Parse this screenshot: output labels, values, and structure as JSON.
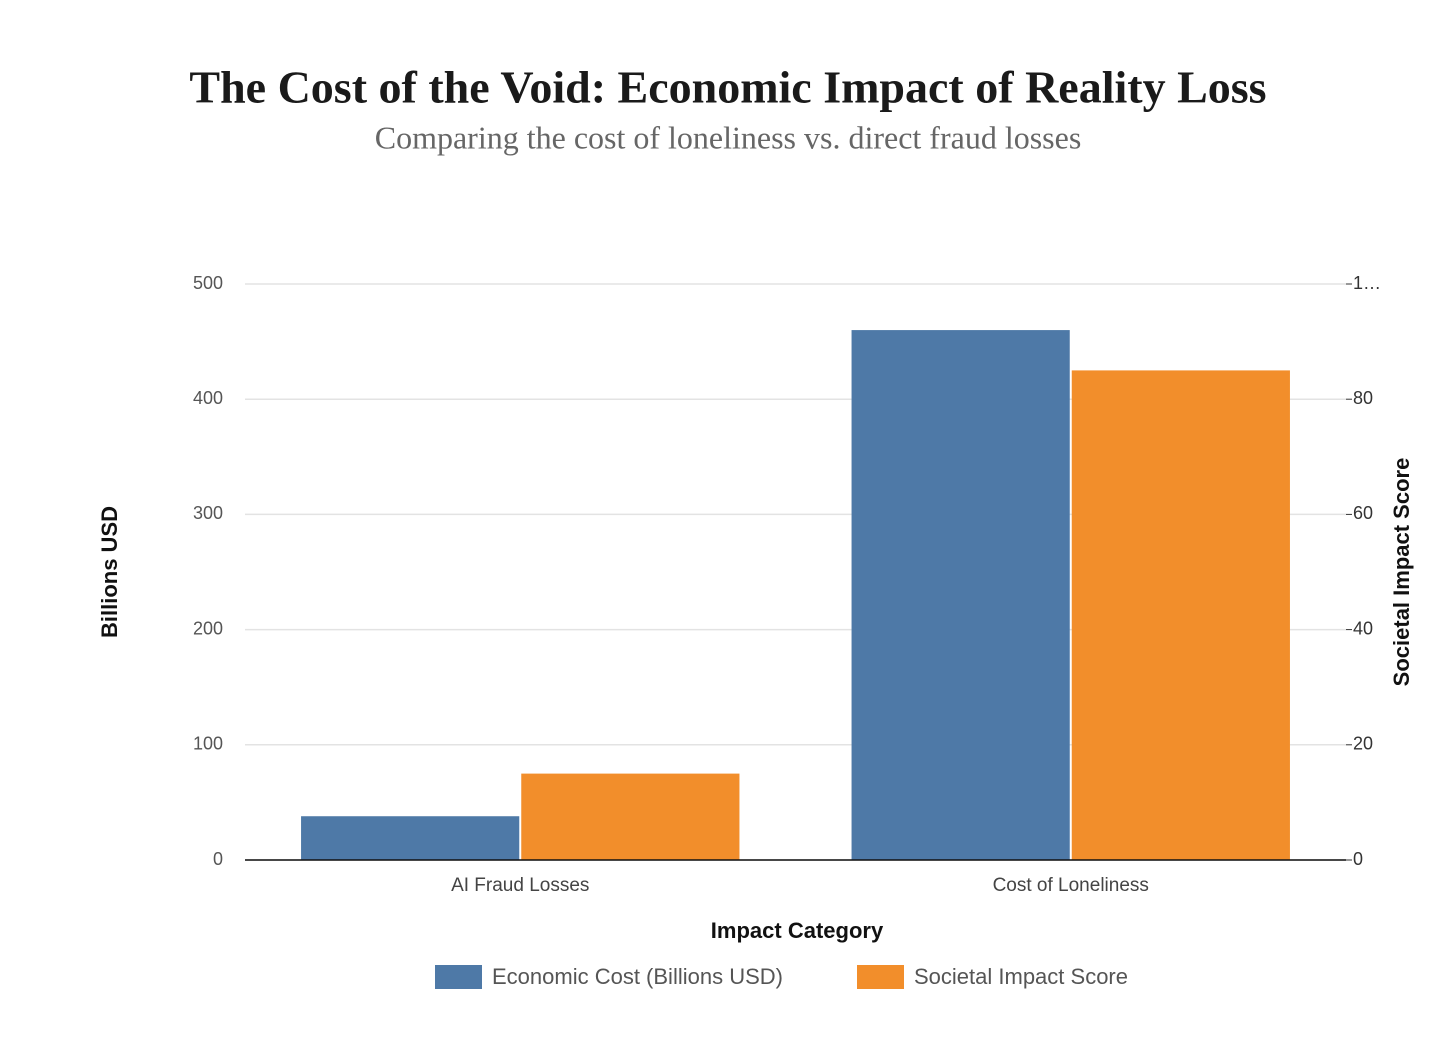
{
  "chart_data": {
    "type": "bar",
    "title": "The Cost of the Void: Economic Impact of Reality Loss",
    "subtitle": "Comparing the cost of loneliness vs. direct fraud losses",
    "x_label": "Impact Category",
    "y_label": "Billions USD",
    "y2_label": "Societal Impact Score",
    "categories": [
      "AI Fraud Losses",
      "Cost of Loneliness"
    ],
    "series": [
      {
        "name": "Economic Cost (Billions USD)",
        "color": "#4e79a7",
        "values": [
          38,
          460
        ]
      },
      {
        "name": "Societal Impact Score",
        "color": "#f28e2b",
        "values": [
          15,
          85
        ],
        "axis": "y2"
      }
    ],
    "ylim": [
      0,
      500
    ],
    "yticks": [
      0,
      100,
      200,
      300,
      400,
      500
    ],
    "y2lim": [
      0,
      100
    ],
    "y2ticks": [
      0,
      20,
      40,
      60,
      80,
      {
        "value": 100,
        "label": "1…"
      }
    ],
    "grid": true,
    "legend": "bottom"
  }
}
